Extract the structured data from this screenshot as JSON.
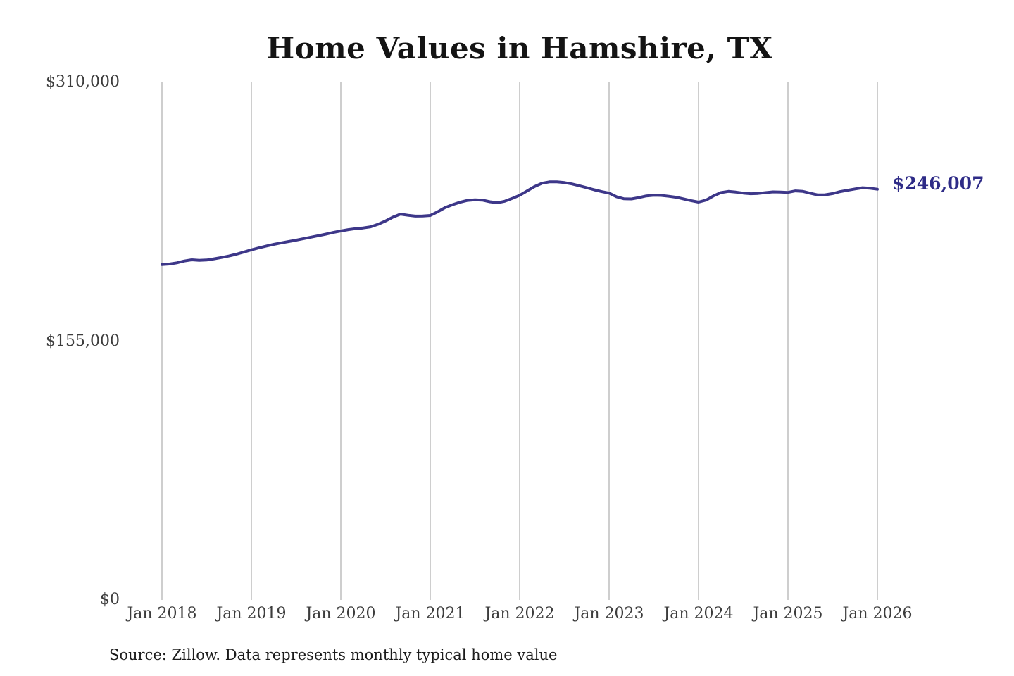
{
  "header": {
    "title": "Home Values in Hamshire, TX"
  },
  "footer": {
    "source": "Source: Zillow. Data represents monthly typical home value"
  },
  "annotation": {
    "latest_value_label": "$246,007"
  },
  "colors": {
    "line": "#3d3789",
    "annotation": "#2e2b87",
    "gridline": "#c9c9c9",
    "axis_text": "#3d3d3d",
    "title_text": "#141414",
    "source_text": "#1c1c1c",
    "background": "#ffffff"
  },
  "chart_data": {
    "type": "line",
    "title": "Home Values in Hamshire, TX",
    "xlabel": "",
    "ylabel": "",
    "ylim": [
      0,
      310000
    ],
    "grid": "vertical-only",
    "legend": "none",
    "x_interval": "monthly",
    "x_range": [
      "Jan 2018",
      "Jan 2026"
    ],
    "x_tick_labels": [
      "Jan 2018",
      "Jan 2019",
      "Jan 2020",
      "Jan 2021",
      "Jan 2022",
      "Jan 2023",
      "Jan 2024",
      "Jan 2025",
      "Jan 2026"
    ],
    "y_ticks": [
      {
        "label": "$310,000",
        "value": 310000
      },
      {
        "label": "$155,000",
        "value": 155000
      },
      {
        "label": "$0",
        "value": 0
      }
    ],
    "end_label": "$246,007",
    "series": [
      {
        "name": "Monthly typical home value",
        "values": [
          200900,
          201200,
          201900,
          203000,
          203700,
          203400,
          203600,
          204300,
          205100,
          206000,
          207100,
          208400,
          209700,
          210900,
          212000,
          213000,
          213900,
          214700,
          215500,
          216400,
          217300,
          218200,
          219100,
          220100,
          221000,
          221800,
          222400,
          222800,
          223500,
          225000,
          227000,
          229300,
          231100,
          230400,
          229900,
          230000,
          230300,
          232500,
          235000,
          236800,
          238200,
          239300,
          239700,
          239500,
          238500,
          237900,
          238800,
          240500,
          242400,
          245000,
          247600,
          249600,
          250400,
          250400,
          250000,
          249200,
          248100,
          246900,
          245700,
          244600,
          243700,
          241500,
          240300,
          240200,
          241000,
          242000,
          242400,
          242300,
          241800,
          241200,
          240200,
          239200,
          238300,
          239500,
          242000,
          244000,
          244700,
          244300,
          243700,
          243300,
          243500,
          244000,
          244400,
          244300,
          244100,
          245000,
          244700,
          243600,
          242600,
          242700,
          243400,
          244600,
          245400,
          246200,
          246900,
          246600,
          246007
        ]
      }
    ]
  }
}
